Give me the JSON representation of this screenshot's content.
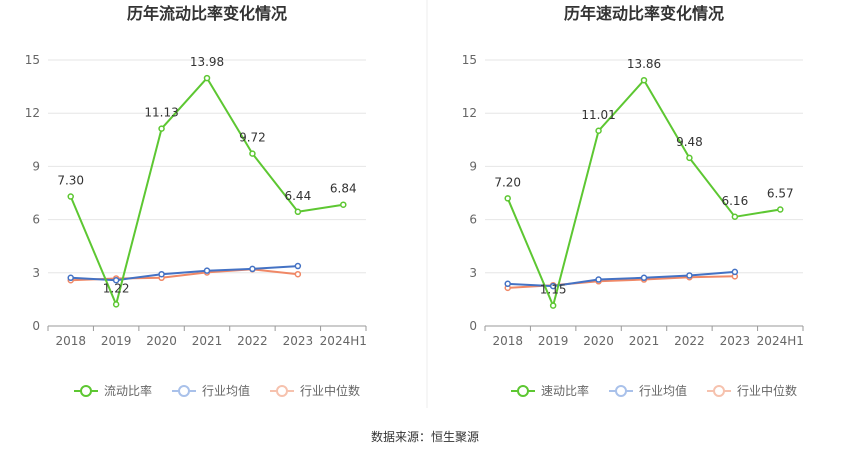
{
  "source_label": "数据来源：恒生聚源",
  "chart_data": [
    {
      "type": "line",
      "title": "历年流动比率变化情况",
      "categories": [
        "2018",
        "2019",
        "2020",
        "2021",
        "2022",
        "2023",
        "2024H1"
      ],
      "ylim": [
        0,
        15
      ],
      "yticks": [
        0,
        3,
        6,
        9,
        12,
        15
      ],
      "grid": true,
      "legend_position": "bottom",
      "series": [
        {
          "name": "流动比率",
          "color": "#5dc732",
          "values": [
            7.3,
            1.22,
            11.13,
            13.98,
            9.72,
            6.44,
            6.84
          ],
          "labels": [
            "7.30",
            "1.22",
            "11.13",
            "13.98",
            "9.72",
            "6.44",
            "6.84"
          ]
        },
        {
          "name": "行业均值",
          "color": "#4472c4",
          "values": [
            2.72,
            2.58,
            2.92,
            3.12,
            3.22,
            3.38,
            null
          ]
        },
        {
          "name": "行业中位数",
          "color": "#f08866",
          "values": [
            2.58,
            2.68,
            2.72,
            3.02,
            3.2,
            2.92,
            null
          ]
        }
      ]
    },
    {
      "type": "line",
      "title": "历年速动比率变化情况",
      "categories": [
        "2018",
        "2019",
        "2020",
        "2021",
        "2022",
        "2023",
        "2024H1"
      ],
      "ylim": [
        0,
        15
      ],
      "yticks": [
        0,
        3,
        6,
        9,
        12,
        15
      ],
      "grid": true,
      "legend_position": "bottom",
      "series": [
        {
          "name": "速动比率",
          "color": "#5dc732",
          "values": [
            7.2,
            1.15,
            11.01,
            13.86,
            9.48,
            6.16,
            6.57
          ],
          "labels": [
            "7.20",
            "1.15",
            "11.01",
            "13.86",
            "9.48",
            "6.16",
            "6.57"
          ]
        },
        {
          "name": "行业均值",
          "color": "#4472c4",
          "values": [
            2.38,
            2.25,
            2.62,
            2.72,
            2.85,
            3.05,
            null
          ]
        },
        {
          "name": "行业中位数",
          "color": "#f08866",
          "values": [
            2.15,
            2.3,
            2.52,
            2.62,
            2.75,
            2.8,
            null
          ]
        }
      ]
    }
  ]
}
